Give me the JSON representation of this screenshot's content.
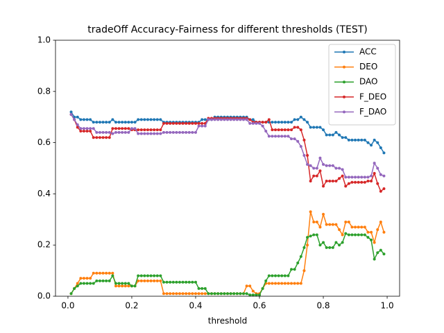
{
  "chart_data": {
    "type": "line",
    "title": "tradeOff Accuracy-Fairness for different thresholds (TEST)",
    "x_label": "threshold",
    "xlim": [
      -0.039,
      1.039
    ],
    "ylim": [
      0,
      1
    ],
    "xticks": [
      {
        "value": 0,
        "label": "0.0"
      },
      0.2,
      0.4,
      0.6,
      0.8,
      {
        "value": 1,
        "label": "1.0"
      }
    ],
    "yticks": [
      {
        "value": 0,
        "label": "0.0"
      },
      0.2,
      0.4,
      0.6,
      0.8,
      {
        "value": 1,
        "label": "1.0"
      }
    ],
    "legend": "upper right",
    "x": [
      0.01,
      0.02,
      0.03,
      0.04,
      0.05,
      0.06,
      0.07,
      0.08,
      0.09,
      0.1,
      0.11,
      0.12,
      0.13,
      0.14,
      0.15,
      0.16,
      0.17,
      0.18,
      0.19,
      0.2,
      0.21,
      0.22,
      0.23,
      0.24,
      0.25,
      0.26,
      0.27,
      0.28,
      0.29,
      0.3,
      0.31,
      0.32,
      0.33,
      0.34,
      0.35,
      0.36,
      0.37,
      0.38,
      0.39,
      0.4,
      0.41,
      0.42,
      0.43,
      0.44,
      0.45,
      0.46,
      0.47,
      0.48,
      0.49,
      0.5,
      0.51,
      0.52,
      0.53,
      0.54,
      0.55,
      0.56,
      0.57,
      0.58,
      0.59,
      0.6,
      0.61,
      0.62,
      0.63,
      0.64,
      0.65,
      0.66,
      0.67,
      0.68,
      0.69,
      0.7,
      0.71,
      0.72,
      0.73,
      0.74,
      0.75,
      0.76,
      0.77,
      0.78,
      0.79,
      0.8,
      0.81,
      0.82,
      0.83,
      0.84,
      0.85,
      0.86,
      0.87,
      0.88,
      0.89,
      0.9,
      0.91,
      0.92,
      0.93,
      0.94,
      0.95,
      0.96,
      0.97,
      0.98,
      0.99
    ],
    "series": [
      {
        "name": "ACC",
        "color": "#1f77b4",
        "values": [
          0.72,
          0.7,
          0.7,
          0.69,
          0.69,
          0.69,
          0.69,
          0.68,
          0.68,
          0.68,
          0.68,
          0.68,
          0.68,
          0.69,
          0.68,
          0.68,
          0.68,
          0.68,
          0.68,
          0.68,
          0.68,
          0.69,
          0.69,
          0.69,
          0.69,
          0.69,
          0.69,
          0.69,
          0.69,
          0.68,
          0.68,
          0.68,
          0.68,
          0.68,
          0.68,
          0.68,
          0.68,
          0.68,
          0.68,
          0.68,
          0.68,
          0.69,
          0.69,
          0.69,
          0.69,
          0.7,
          0.7,
          0.7,
          0.7,
          0.7,
          0.7,
          0.7,
          0.7,
          0.7,
          0.7,
          0.7,
          0.69,
          0.69,
          0.68,
          0.68,
          0.68,
          0.68,
          0.68,
          0.68,
          0.68,
          0.68,
          0.68,
          0.68,
          0.68,
          0.68,
          0.69,
          0.69,
          0.7,
          0.69,
          0.68,
          0.66,
          0.66,
          0.66,
          0.66,
          0.65,
          0.63,
          0.63,
          0.63,
          0.64,
          0.63,
          0.62,
          0.62,
          0.61,
          0.61,
          0.61,
          0.61,
          0.61,
          0.61,
          0.6,
          0.59,
          0.61,
          0.6,
          0.58,
          0.56
        ]
      },
      {
        "name": "DEO",
        "color": "#ff7f0e",
        "values": [
          0.01,
          0.03,
          0.05,
          0.07,
          0.07,
          0.07,
          0.07,
          0.09,
          0.09,
          0.09,
          0.09,
          0.09,
          0.09,
          0.09,
          0.04,
          0.04,
          0.04,
          0.04,
          0.04,
          0.04,
          0.04,
          0.06,
          0.06,
          0.06,
          0.06,
          0.06,
          0.06,
          0.06,
          0.06,
          0.01,
          0.01,
          0.01,
          0.01,
          0.01,
          0.01,
          0.01,
          0.01,
          0.01,
          0.01,
          0.01,
          0.01,
          0.01,
          0.01,
          0.01,
          0.01,
          0.01,
          0.01,
          0.01,
          0.01,
          0.01,
          0.01,
          0.01,
          0.01,
          0.01,
          0.01,
          0.04,
          0.04,
          0.02,
          0.01,
          0.01,
          0.03,
          0.05,
          0.05,
          0.05,
          0.05,
          0.05,
          0.05,
          0.05,
          0.05,
          0.05,
          0.05,
          0.05,
          0.05,
          0.1,
          0.2,
          0.33,
          0.29,
          0.29,
          0.27,
          0.32,
          0.28,
          0.28,
          0.28,
          0.28,
          0.26,
          0.24,
          0.29,
          0.29,
          0.27,
          0.27,
          0.27,
          0.27,
          0.27,
          0.25,
          0.25,
          0.21,
          0.26,
          0.29,
          0.25
        ]
      },
      {
        "name": "DAO",
        "color": "#2ca02c",
        "values": [
          0.01,
          0.03,
          0.04,
          0.05,
          0.05,
          0.05,
          0.05,
          0.05,
          0.06,
          0.06,
          0.06,
          0.06,
          0.06,
          0.08,
          0.05,
          0.05,
          0.05,
          0.05,
          0.05,
          0.04,
          0.04,
          0.08,
          0.08,
          0.08,
          0.08,
          0.08,
          0.08,
          0.08,
          0.08,
          0.055,
          0.055,
          0.055,
          0.055,
          0.055,
          0.055,
          0.055,
          0.055,
          0.055,
          0.055,
          0.055,
          0.03,
          0.03,
          0.03,
          0.01,
          0.01,
          0.01,
          0.01,
          0.01,
          0.01,
          0.01,
          0.01,
          0.01,
          0.01,
          0.01,
          0.01,
          0.01,
          0.005,
          0.005,
          0.005,
          0.005,
          0.03,
          0.06,
          0.08,
          0.08,
          0.08,
          0.08,
          0.08,
          0.08,
          0.08,
          0.105,
          0.105,
          0.13,
          0.155,
          0.19,
          0.23,
          0.235,
          0.24,
          0.24,
          0.2,
          0.21,
          0.19,
          0.19,
          0.19,
          0.21,
          0.2,
          0.21,
          0.245,
          0.24,
          0.24,
          0.24,
          0.24,
          0.24,
          0.24,
          0.23,
          0.22,
          0.145,
          0.17,
          0.18,
          0.165
        ]
      },
      {
        "name": "F_DEO",
        "color": "#d62728",
        "values": [
          0.71,
          0.69,
          0.66,
          0.645,
          0.645,
          0.645,
          0.645,
          0.62,
          0.62,
          0.62,
          0.62,
          0.62,
          0.62,
          0.655,
          0.655,
          0.655,
          0.655,
          0.655,
          0.655,
          0.65,
          0.65,
          0.65,
          0.65,
          0.65,
          0.65,
          0.65,
          0.65,
          0.65,
          0.65,
          0.675,
          0.675,
          0.675,
          0.675,
          0.675,
          0.675,
          0.675,
          0.675,
          0.675,
          0.675,
          0.675,
          0.675,
          0.675,
          0.675,
          0.695,
          0.695,
          0.695,
          0.695,
          0.695,
          0.695,
          0.695,
          0.695,
          0.695,
          0.695,
          0.695,
          0.695,
          0.695,
          0.69,
          0.68,
          0.68,
          0.68,
          0.68,
          0.68,
          0.69,
          0.65,
          0.65,
          0.65,
          0.65,
          0.65,
          0.65,
          0.65,
          0.66,
          0.66,
          0.65,
          0.61,
          0.55,
          0.45,
          0.47,
          0.47,
          0.49,
          0.43,
          0.45,
          0.45,
          0.45,
          0.45,
          0.46,
          0.47,
          0.43,
          0.44,
          0.445,
          0.445,
          0.445,
          0.445,
          0.445,
          0.45,
          0.45,
          0.48,
          0.44,
          0.41,
          0.42
        ]
      },
      {
        "name": "F_DAO",
        "color": "#9467bd",
        "values": [
          0.71,
          0.69,
          0.67,
          0.655,
          0.655,
          0.655,
          0.655,
          0.655,
          0.64,
          0.64,
          0.64,
          0.64,
          0.64,
          0.635,
          0.64,
          0.64,
          0.64,
          0.64,
          0.64,
          0.655,
          0.655,
          0.635,
          0.635,
          0.635,
          0.635,
          0.635,
          0.635,
          0.635,
          0.635,
          0.64,
          0.64,
          0.64,
          0.64,
          0.64,
          0.64,
          0.64,
          0.64,
          0.64,
          0.64,
          0.64,
          0.665,
          0.665,
          0.665,
          0.69,
          0.69,
          0.69,
          0.69,
          0.69,
          0.69,
          0.69,
          0.69,
          0.69,
          0.69,
          0.69,
          0.69,
          0.69,
          0.675,
          0.675,
          0.675,
          0.675,
          0.665,
          0.645,
          0.625,
          0.625,
          0.625,
          0.625,
          0.625,
          0.625,
          0.625,
          0.615,
          0.615,
          0.605,
          0.585,
          0.55,
          0.515,
          0.51,
          0.5,
          0.5,
          0.54,
          0.515,
          0.51,
          0.51,
          0.51,
          0.5,
          0.5,
          0.495,
          0.465,
          0.465,
          0.465,
          0.465,
          0.465,
          0.465,
          0.465,
          0.465,
          0.47,
          0.52,
          0.5,
          0.475,
          0.47
        ]
      }
    ]
  }
}
